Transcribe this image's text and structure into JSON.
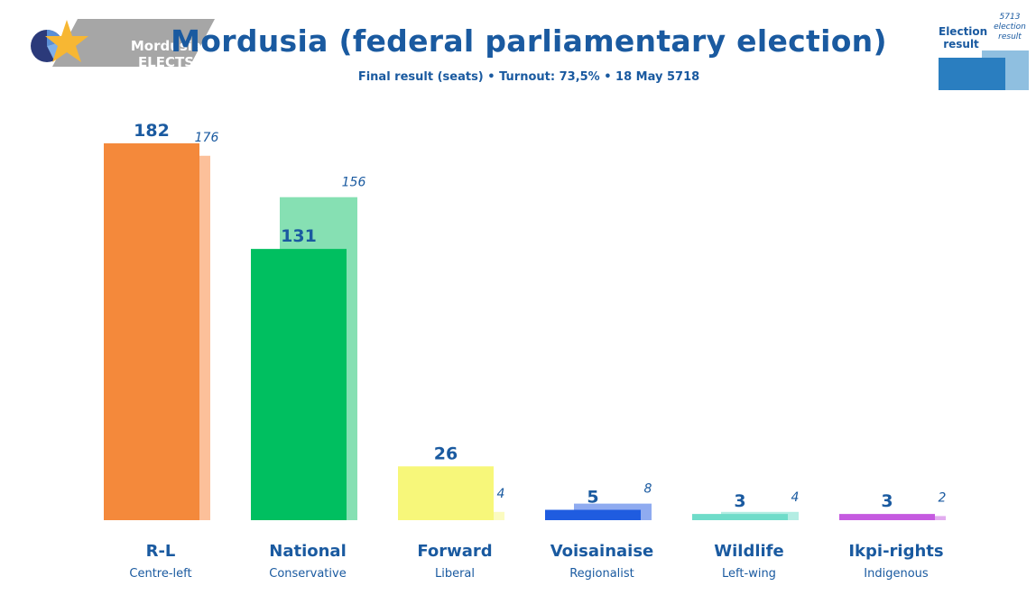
{
  "header": {
    "logo_line1": "Mordusia",
    "logo_line2": "ELECTS",
    "title": "Mordusia (federal parliamentary election)",
    "subtitle": "Final result (seats) • Turnout: 73,5% • 18 May 5718"
  },
  "legend": {
    "current_label": "Election result",
    "previous_label": "5713 election result"
  },
  "chart_data": {
    "type": "bar",
    "categories": [
      "R-L",
      "National",
      "Forward",
      "Voisainaise",
      "Wildlife",
      "Ikpi-rights"
    ],
    "descriptions": [
      "Centre-left",
      "Conservative",
      "Liberal",
      "Regionalist",
      "Left-wing",
      "Indigenous"
    ],
    "series": [
      {
        "name": "Election result",
        "values": [
          182,
          131,
          26,
          5,
          3,
          3
        ]
      },
      {
        "name": "5713 election result",
        "values": [
          176,
          156,
          4,
          8,
          4,
          2
        ]
      }
    ],
    "colors": [
      "#f4893b",
      "#00bf60",
      "#f7f77a",
      "#1f5ce0",
      "#6fdcc9",
      "#c55ae0"
    ],
    "previous_colors": [
      "#fcc09a",
      "#86e0b3",
      "#fbfbbf",
      "#8fabf0",
      "#b3ede3",
      "#e2acef"
    ],
    "value_color": "#1a5aa0",
    "title": "",
    "xlabel": "",
    "ylabel": "",
    "ylim": [
      0,
      182
    ]
  }
}
